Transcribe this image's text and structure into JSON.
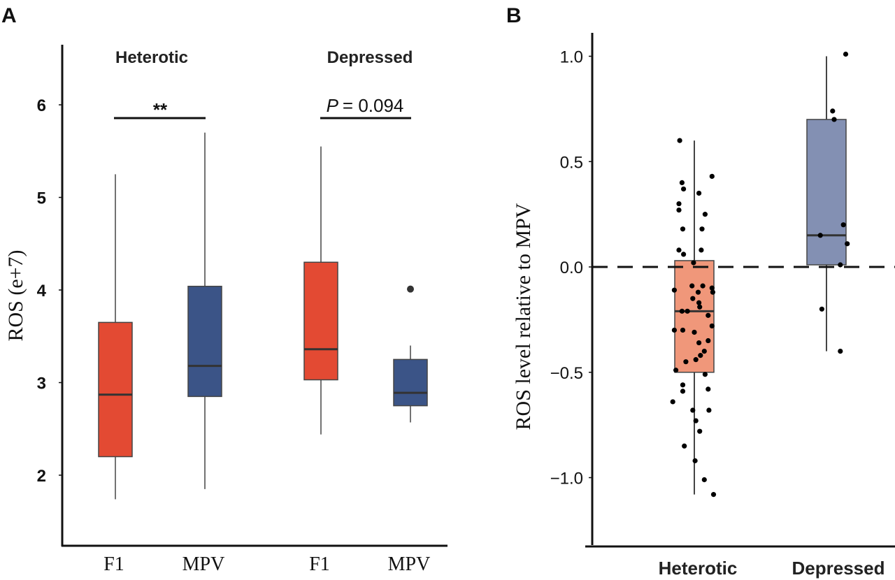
{
  "figure": {
    "panel_a_label": "A",
    "panel_b_label": "B"
  },
  "chart_data": [
    {
      "type": "boxplot",
      "panel": "A",
      "title": "",
      "xlabel": "",
      "ylabel": "ROS (e+7)",
      "ylim": [
        1.25,
        6.55
      ],
      "yticks": [
        2,
        3,
        4,
        5,
        6
      ],
      "ytick_labels": [
        "2",
        "3",
        "4",
        "5",
        "6"
      ],
      "grid": false,
      "groups": [
        {
          "name": "Heterotic",
          "significance": "**",
          "boxes": [
            {
              "category": "F1",
              "color": "#e34a33",
              "whisker_low": 1.74,
              "q1": 2.2,
              "median": 2.87,
              "q3": 3.65,
              "whisker_high": 5.25,
              "outliers": []
            },
            {
              "category": "MPV",
              "color": "#3b5487",
              "whisker_low": 1.85,
              "q1": 2.85,
              "median": 3.18,
              "q3": 4.04,
              "whisker_high": 5.7,
              "outliers": []
            }
          ]
        },
        {
          "name": "Depressed",
          "significance": "P = 0.094",
          "significance_p_symbol": "P",
          "significance_value": "= 0.094",
          "boxes": [
            {
              "category": "F1",
              "color": "#e34a33",
              "whisker_low": 2.44,
              "q1": 3.03,
              "median": 3.36,
              "q3": 4.3,
              "whisker_high": 5.55,
              "outliers": []
            },
            {
              "category": "MPV",
              "color": "#3b5487",
              "whisker_low": 2.57,
              "q1": 2.75,
              "median": 2.89,
              "q3": 3.25,
              "whisker_high": 3.4,
              "outliers": [
                4.01
              ]
            }
          ]
        }
      ],
      "categories": [
        "F1",
        "MPV",
        "F1",
        "MPV"
      ]
    },
    {
      "type": "boxplot",
      "panel": "B",
      "title": "",
      "xlabel": "",
      "ylabel": "ROS level relative to MPV",
      "ylim": [
        -1.33,
        1.11
      ],
      "yticks": [
        -1.0,
        -0.5,
        0.0,
        0.5,
        1.0
      ],
      "ytick_labels": [
        "−1.0",
        "−0.5",
        "0.0",
        "0.5",
        "1.0"
      ],
      "reference_line": {
        "y": 0.0,
        "style": "dashed"
      },
      "grid": false,
      "categories": [
        "Heterotic",
        "Depressed"
      ],
      "boxes": [
        {
          "category": "Heterotic",
          "color": "#f0977a",
          "whisker_low": -1.08,
          "q1": -0.5,
          "median": -0.21,
          "q3": 0.03,
          "whisker_high": 0.6,
          "points": [
            {
              "dx": -0.19,
              "y": 0.6
            },
            {
              "dx": -0.16,
              "y": 0.4
            },
            {
              "dx": -0.14,
              "y": 0.37
            },
            {
              "dx": -0.2,
              "y": 0.3
            },
            {
              "dx": -0.2,
              "y": 0.27
            },
            {
              "dx": -0.15,
              "y": 0.18
            },
            {
              "dx": -0.2,
              "y": 0.08
            },
            {
              "dx": -0.14,
              "y": 0.06
            },
            {
              "dx": 0.06,
              "y": 0.35
            },
            {
              "dx": 0.14,
              "y": 0.25
            },
            {
              "dx": 0.1,
              "y": 0.18
            },
            {
              "dx": 0.09,
              "y": 0.08
            },
            {
              "dx": 0.23,
              "y": 0.43
            },
            {
              "dx": -0.01,
              "y": 0.02
            },
            {
              "dx": -0.03,
              "y": -0.09
            },
            {
              "dx": 0.05,
              "y": -0.12
            },
            {
              "dx": 0.11,
              "y": -0.09
            },
            {
              "dx": -0.02,
              "y": -0.15
            },
            {
              "dx": 0.06,
              "y": -0.17
            },
            {
              "dx": 0.07,
              "y": -0.19
            },
            {
              "dx": 0.23,
              "y": -0.1
            },
            {
              "dx": 0.24,
              "y": -0.12
            },
            {
              "dx": -0.26,
              "y": -0.11
            },
            {
              "dx": 0.18,
              "y": -0.23
            },
            {
              "dx": -0.16,
              "y": -0.21
            },
            {
              "dx": -0.09,
              "y": -0.21
            },
            {
              "dx": 0.23,
              "y": -0.28
            },
            {
              "dx": -0.15,
              "y": -0.3
            },
            {
              "dx": 0.0,
              "y": -0.31
            },
            {
              "dx": -0.26,
              "y": -0.3
            },
            {
              "dx": 0.06,
              "y": -0.36
            },
            {
              "dx": 0.18,
              "y": -0.35
            },
            {
              "dx": 0.13,
              "y": -0.4
            },
            {
              "dx": -0.11,
              "y": -0.45
            },
            {
              "dx": 0.02,
              "y": -0.44
            },
            {
              "dx": 0.08,
              "y": -0.42
            },
            {
              "dx": -0.24,
              "y": -0.49
            },
            {
              "dx": 0.14,
              "y": -0.51
            },
            {
              "dx": -0.15,
              "y": -0.56
            },
            {
              "dx": -0.15,
              "y": -0.59
            },
            {
              "dx": 0.18,
              "y": -0.58
            },
            {
              "dx": -0.28,
              "y": -0.64
            },
            {
              "dx": 0.19,
              "y": -0.68
            },
            {
              "dx": -0.02,
              "y": -0.68
            },
            {
              "dx": 0.02,
              "y": -0.73
            },
            {
              "dx": 0.07,
              "y": -0.78
            },
            {
              "dx": -0.13,
              "y": -0.85
            },
            {
              "dx": 0.01,
              "y": -0.92
            },
            {
              "dx": 0.13,
              "y": -1.01
            },
            {
              "dx": 0.25,
              "y": -1.08
            }
          ]
        },
        {
          "category": "Depressed",
          "color": "#8390b3",
          "whisker_low": -0.4,
          "q1": 0.01,
          "median": 0.15,
          "q3": 0.7,
          "whisker_high": 1.0,
          "points": [
            {
              "dx": 0.25,
              "y": 1.01
            },
            {
              "dx": 0.08,
              "y": 0.74
            },
            {
              "dx": 0.1,
              "y": 0.7
            },
            {
              "dx": -0.08,
              "y": 0.15
            },
            {
              "dx": 0.22,
              "y": 0.2
            },
            {
              "dx": 0.27,
              "y": 0.11
            },
            {
              "dx": 0.18,
              "y": 0.01
            },
            {
              "dx": -0.06,
              "y": -0.2
            },
            {
              "dx": 0.18,
              "y": -0.4
            }
          ]
        }
      ]
    }
  ]
}
